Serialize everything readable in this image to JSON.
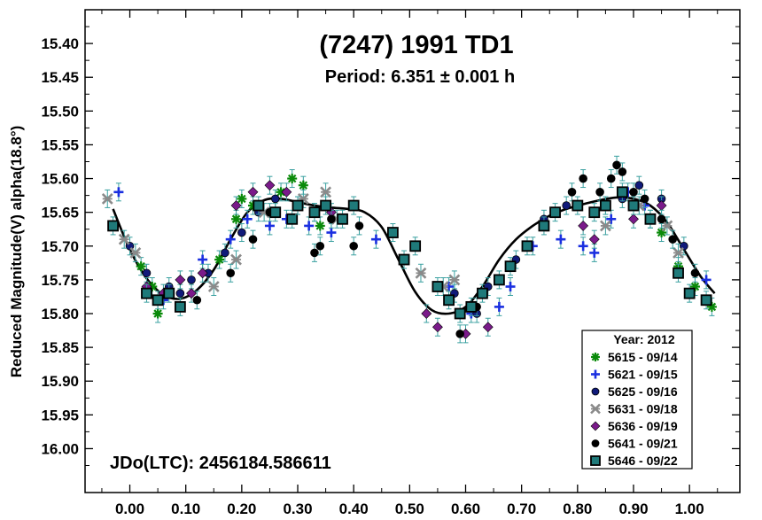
{
  "chart_data": {
    "type": "scatter",
    "title": "(7247) 1991 TD1",
    "subtitle": "Period: 6.351 ± 0.001 h",
    "ylabel": "Reduced Magnitude(V) alpha(18.8°)",
    "xlabel": "",
    "xlim": [
      -0.08,
      1.09
    ],
    "ylim": [
      15.35,
      16.065
    ],
    "y_inverted": true,
    "x_ticks": [
      "0.00",
      "0.10",
      "0.20",
      "0.30",
      "0.40",
      "0.50",
      "0.60",
      "0.70",
      "0.80",
      "0.90",
      "1.00"
    ],
    "y_ticks": [
      "15.40",
      "15.45",
      "15.50",
      "15.55",
      "15.60",
      "15.65",
      "15.70",
      "15.75",
      "15.80",
      "15.85",
      "15.90",
      "15.95",
      "16.00"
    ],
    "annotation": "JDo(LTC): 2456184.586611",
    "legend_title": "Year: 2012",
    "legend_position": "bottom-right",
    "grid": false,
    "fit_curve": {
      "x": [
        -0.03,
        0.0,
        0.03,
        0.06,
        0.09,
        0.12,
        0.15,
        0.18,
        0.21,
        0.24,
        0.27,
        0.3,
        0.33,
        0.36,
        0.39,
        0.42,
        0.45,
        0.48,
        0.51,
        0.54,
        0.57,
        0.6,
        0.63,
        0.66,
        0.69,
        0.72,
        0.75,
        0.78,
        0.81,
        0.84,
        0.87,
        0.9,
        0.93,
        0.96,
        0.99,
        1.02,
        1.045
      ],
      "y": [
        15.645,
        15.705,
        15.748,
        15.772,
        15.778,
        15.765,
        15.735,
        15.69,
        15.65,
        15.632,
        15.63,
        15.635,
        15.64,
        15.643,
        15.645,
        15.65,
        15.672,
        15.72,
        15.768,
        15.795,
        15.8,
        15.79,
        15.76,
        15.72,
        15.69,
        15.67,
        15.655,
        15.645,
        15.638,
        15.632,
        15.628,
        15.63,
        15.64,
        15.665,
        15.705,
        15.745,
        15.77
      ]
    },
    "series": [
      {
        "name": "5615 - 09/14",
        "marker": "star",
        "color": "#0a8a0a",
        "x": [
          0.02,
          0.04,
          0.05,
          0.16,
          0.19,
          0.2,
          0.22,
          0.27,
          0.29,
          0.31,
          0.34,
          0.95,
          0.98,
          1.01,
          1.04
        ],
        "y": [
          15.73,
          15.76,
          15.8,
          15.72,
          15.66,
          15.63,
          15.64,
          15.62,
          15.6,
          15.61,
          15.67,
          15.68,
          15.73,
          15.76,
          15.79
        ]
      },
      {
        "name": "5621 - 09/15",
        "marker": "plus",
        "color": "#1a2fe0",
        "x": [
          -0.02,
          0.06,
          0.13,
          0.18,
          0.21,
          0.25,
          0.28,
          0.32,
          0.36,
          0.44,
          0.57,
          0.61,
          0.66,
          0.68,
          0.72,
          0.77,
          0.81,
          0.83,
          0.86,
          0.89,
          0.92,
          1.03
        ],
        "y": [
          15.62,
          15.78,
          15.72,
          15.69,
          15.66,
          15.67,
          15.66,
          15.67,
          15.68,
          15.69,
          15.76,
          15.8,
          15.79,
          15.76,
          15.7,
          15.69,
          15.7,
          15.71,
          15.66,
          15.62,
          15.64,
          15.75
        ]
      },
      {
        "name": "5625 - 09/16",
        "marker": "circle",
        "color": "#101a7a",
        "x": [
          0.0,
          0.03,
          0.07,
          0.09,
          0.11,
          0.14,
          0.17,
          0.2,
          0.23,
          0.26,
          0.3,
          0.33,
          0.58,
          0.62,
          0.64,
          0.69,
          0.74,
          0.78,
          0.85,
          0.88,
          0.91,
          0.95,
          0.99
        ],
        "y": [
          15.7,
          15.74,
          15.76,
          15.77,
          15.75,
          15.74,
          15.71,
          15.68,
          15.65,
          15.63,
          15.64,
          15.65,
          15.77,
          15.8,
          15.76,
          15.72,
          15.66,
          15.64,
          15.64,
          15.63,
          15.61,
          15.63,
          15.7
        ]
      },
      {
        "name": "5631 - 09/18",
        "marker": "x",
        "color": "#8a8a8a",
        "x": [
          -0.04,
          -0.01,
          0.01,
          0.15,
          0.19,
          0.24,
          0.31,
          0.35,
          0.37,
          0.52,
          0.56,
          0.58,
          0.85,
          0.91,
          0.93,
          0.96,
          0.98
        ],
        "y": [
          15.63,
          15.69,
          15.71,
          15.76,
          15.72,
          15.65,
          15.63,
          15.62,
          15.66,
          15.74,
          15.76,
          15.75,
          15.67,
          15.64,
          15.66,
          15.67,
          15.71
        ]
      },
      {
        "name": "5636 - 09/19",
        "marker": "diamond",
        "color": "#7a1a8a",
        "x": [
          0.03,
          0.06,
          0.09,
          0.11,
          0.13,
          0.19,
          0.22,
          0.25,
          0.28,
          0.36,
          0.53,
          0.55,
          0.6,
          0.64,
          0.81,
          0.83,
          0.9,
          0.95
        ],
        "y": [
          15.76,
          15.77,
          15.75,
          15.77,
          15.74,
          15.64,
          15.62,
          15.61,
          15.62,
          15.65,
          15.8,
          15.82,
          15.83,
          15.82,
          15.67,
          15.69,
          15.66,
          15.64
        ]
      },
      {
        "name": "5641 - 09/21",
        "marker": "circle",
        "color": "#000000",
        "x": [
          0.12,
          0.18,
          0.22,
          0.25,
          0.33,
          0.34,
          0.36,
          0.4,
          0.41,
          0.59,
          0.62,
          0.79,
          0.81,
          0.84,
          0.86,
          0.87,
          0.88,
          0.9,
          0.92,
          0.95,
          0.97,
          1.01
        ],
        "y": [
          15.78,
          15.74,
          15.69,
          15.65,
          15.71,
          15.7,
          15.66,
          15.7,
          15.67,
          15.83,
          15.79,
          15.62,
          15.6,
          15.62,
          15.6,
          15.58,
          15.59,
          15.62,
          15.63,
          15.66,
          15.69,
          15.74
        ]
      },
      {
        "name": "5646 - 09/22",
        "marker": "square",
        "color": "#1f7a7a",
        "x": [
          -0.03,
          0.03,
          0.05,
          0.07,
          0.09,
          0.23,
          0.26,
          0.29,
          0.3,
          0.33,
          0.35,
          0.38,
          0.4,
          0.47,
          0.49,
          0.51,
          0.55,
          0.57,
          0.59,
          0.61,
          0.63,
          0.66,
          0.68,
          0.71,
          0.74,
          0.76,
          0.8,
          0.83,
          0.85,
          0.88,
          0.9,
          0.93,
          0.98,
          1.0,
          1.03
        ],
        "y": [
          15.67,
          15.77,
          15.78,
          15.77,
          15.79,
          15.64,
          15.65,
          15.66,
          15.64,
          15.65,
          15.64,
          15.66,
          15.64,
          15.68,
          15.72,
          15.7,
          15.76,
          15.78,
          15.8,
          15.79,
          15.77,
          15.75,
          15.73,
          15.7,
          15.67,
          15.65,
          15.64,
          15.65,
          15.64,
          15.62,
          15.64,
          15.66,
          15.74,
          15.77,
          15.78
        ]
      }
    ]
  }
}
